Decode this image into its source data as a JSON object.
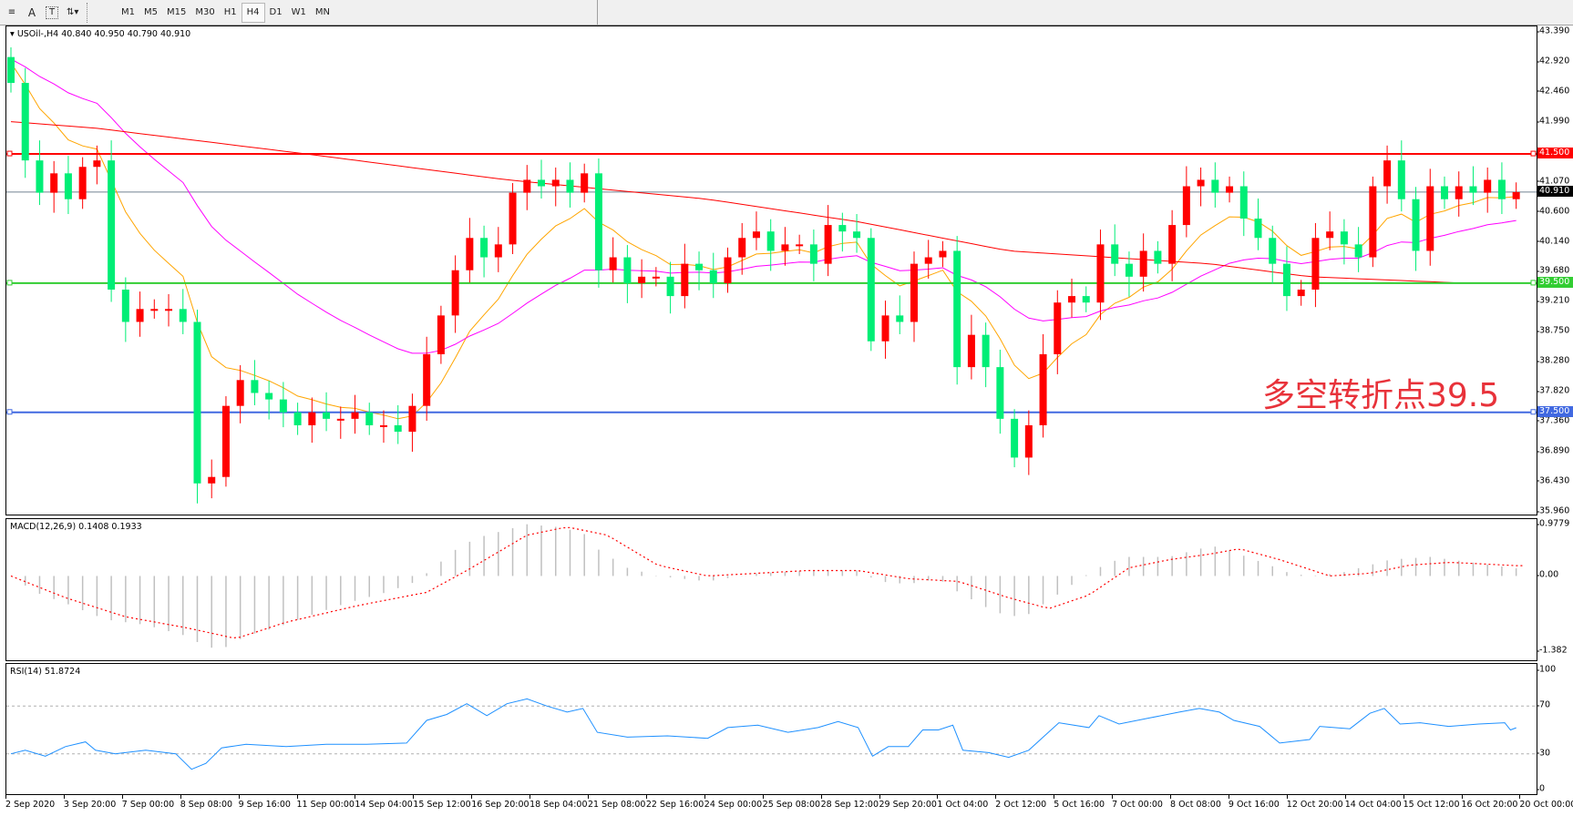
{
  "toolbar": {
    "tools": [
      {
        "name": "fibonacci-icon",
        "label": "≡"
      },
      {
        "name": "text-icon",
        "label": "A"
      },
      {
        "name": "text-label-icon",
        "label": "T"
      },
      {
        "name": "arrows-icon",
        "label": "⇅▾"
      }
    ],
    "timeframes": [
      "M1",
      "M5",
      "M15",
      "M30",
      "H1",
      "H4",
      "D1",
      "W1",
      "MN"
    ],
    "active_timeframe": "H4"
  },
  "main": {
    "title": "USOil-,H4  40.840 40.950 40.790 40.910",
    "annotation": "多空转折点39.5"
  },
  "macd": {
    "title": "MACD(12,26,9) 0.1408 0.1933"
  },
  "rsi": {
    "title": "RSI(14) 51.8724"
  },
  "colors": {
    "bull": "#ff0000",
    "bear": "#00ee76",
    "ma_fast": "#ffa500",
    "ma_mid": "#ff00ff",
    "ma_long": "#ff0000",
    "macd_hist": "#c0c0c0",
    "macd_signal": "#ff0000",
    "rsi": "#1e90ff",
    "current_price": "#708090"
  },
  "chart_data": [
    {
      "type": "candlestick",
      "symbol": "USOil-",
      "timeframe": "H4",
      "ylim": [
        35.96,
        43.39
      ],
      "y_ticks": [
        "43.390",
        "42.920",
        "42.460",
        "41.990",
        "41.070",
        "40.600",
        "40.140",
        "39.680",
        "39.210",
        "38.750",
        "38.280",
        "37.820",
        "37.360",
        "36.890",
        "36.430",
        "35.960"
      ],
      "x_ticks": [
        "2 Sep 2020",
        "3 Sep 20:00",
        "7 Sep 00:00",
        "8 Sep 08:00",
        "9 Sep 16:00",
        "11 Sep 00:00",
        "14 Sep 04:00",
        "15 Sep 12:00",
        "16 Sep 20:00",
        "18 Sep 04:00",
        "21 Sep 08:00",
        "22 Sep 16:00",
        "24 Sep 00:00",
        "25 Sep 08:00",
        "28 Sep 12:00",
        "29 Sep 20:00",
        "1 Oct 04:00",
        "2 Oct 12:00",
        "5 Oct 16:00",
        "7 Oct 00:00",
        "8 Oct 08:00",
        "9 Oct 16:00",
        "12 Oct 20:00",
        "14 Oct 04:00",
        "15 Oct 12:00",
        "16 Oct 20:00",
        "20 Oct 00:00"
      ],
      "first_open": 43.0,
      "closes": [
        42.6,
        41.4,
        40.9,
        41.2,
        40.8,
        41.3,
        41.4,
        39.4,
        38.9,
        39.1,
        39.1,
        39.1,
        38.9,
        36.4,
        36.5,
        37.6,
        38.0,
        37.8,
        37.7,
        37.5,
        37.3,
        37.5,
        37.4,
        37.4,
        37.5,
        37.3,
        37.3,
        37.2,
        37.6,
        38.4,
        39.0,
        39.7,
        40.2,
        39.9,
        40.1,
        40.9,
        41.1,
        41.0,
        41.1,
        40.9,
        41.2,
        39.7,
        39.9,
        39.5,
        39.6,
        39.6,
        39.3,
        39.8,
        39.7,
        39.5,
        39.9,
        40.2,
        40.3,
        40.0,
        40.1,
        40.1,
        39.8,
        40.4,
        40.3,
        40.2,
        38.6,
        39.0,
        38.9,
        39.8,
        39.9,
        40.0,
        38.2,
        38.7,
        38.2,
        37.4,
        36.8,
        37.3,
        38.4,
        39.2,
        39.3,
        39.2,
        40.1,
        39.8,
        39.6,
        40.0,
        39.8,
        40.4,
        41.0,
        41.1,
        40.9,
        41.0,
        40.5,
        40.2,
        39.8,
        39.3,
        39.4,
        40.2,
        40.3,
        40.1,
        39.9,
        41.0,
        41.4,
        40.8,
        40.0,
        41.0,
        40.8,
        41.0,
        40.9,
        41.1,
        40.8,
        40.91
      ],
      "ma_long": [
        [
          0,
          42.0
        ],
        [
          5.9,
          41.9
        ],
        [
          20.6,
          41.5
        ],
        [
          34.6,
          41.1
        ],
        [
          48.6,
          40.8
        ],
        [
          59.1,
          40.45
        ],
        [
          69.6,
          40.0
        ],
        [
          76.6,
          39.9
        ],
        [
          83.6,
          39.8
        ],
        [
          90.6,
          39.6
        ],
        [
          101.4,
          39.5
        ]
      ],
      "current_price": {
        "value": 40.91,
        "label": "40.910"
      },
      "horizontal_lines": [
        {
          "value": 41.5,
          "label": "41.500",
          "color": "#ff0000"
        },
        {
          "value": 39.5,
          "label": "39.500",
          "color": "#32cd32"
        },
        {
          "value": 37.5,
          "label": "37.500",
          "color": "#4169e1"
        }
      ]
    },
    {
      "type": "bar",
      "indicator": "MACD(12,26,9)",
      "ylim": [
        -1.382,
        0.9779
      ],
      "y_ticks": [
        "0.9779",
        "0.00",
        "-1.382"
      ],
      "histogram": [
        [
          0,
          0
        ],
        [
          1.7,
          -0.3
        ],
        [
          3.8,
          -0.5
        ],
        [
          6.6,
          -0.8
        ],
        [
          9.4,
          -0.9
        ],
        [
          12.2,
          -1.1
        ],
        [
          13.6,
          -1.3
        ],
        [
          14.7,
          -1.35
        ],
        [
          16.4,
          -1.1
        ],
        [
          18.5,
          -0.95
        ],
        [
          20.6,
          -0.75
        ],
        [
          23.4,
          -0.5
        ],
        [
          26.2,
          -0.3
        ],
        [
          28.3,
          -0.1
        ],
        [
          29.7,
          0.2
        ],
        [
          31.1,
          0.5
        ],
        [
          32.5,
          0.7
        ],
        [
          34.6,
          0.85
        ],
        [
          36,
          0.95
        ],
        [
          38.1,
          0.9
        ],
        [
          39.9,
          0.8
        ],
        [
          40.9,
          0.5
        ],
        [
          43,
          0.15
        ],
        [
          45.1,
          0
        ],
        [
          48.6,
          -0.1
        ],
        [
          52.1,
          0.05
        ],
        [
          55.6,
          0.1
        ],
        [
          59.1,
          0.1
        ],
        [
          60.5,
          -0.1
        ],
        [
          62.6,
          -0.15
        ],
        [
          64.7,
          -0.05
        ],
        [
          66.1,
          -0.3
        ],
        [
          68.2,
          -0.6
        ],
        [
          69.6,
          -0.75
        ],
        [
          71,
          -0.7
        ],
        [
          72.4,
          -0.45
        ],
        [
          73.8,
          -0.2
        ],
        [
          75.2,
          0.05
        ],
        [
          76.6,
          0.25
        ],
        [
          78,
          0.35
        ],
        [
          80.8,
          0.35
        ],
        [
          82.9,
          0.5
        ],
        [
          84.3,
          0.55
        ],
        [
          85.7,
          0.4
        ],
        [
          87.8,
          0.2
        ],
        [
          89.2,
          0.05
        ],
        [
          90.6,
          0
        ],
        [
          92.7,
          0.05
        ],
        [
          94.8,
          0.2
        ],
        [
          96.2,
          0.3
        ],
        [
          99,
          0.35
        ],
        [
          105,
          0.14
        ]
      ],
      "signal": [
        [
          0,
          0
        ],
        [
          3.8,
          -0.4
        ],
        [
          8,
          -0.75
        ],
        [
          12.2,
          -0.95
        ],
        [
          15.7,
          -1.15
        ],
        [
          19.2,
          -0.85
        ],
        [
          24.1,
          -0.55
        ],
        [
          29,
          -0.3
        ],
        [
          31.8,
          0.1
        ],
        [
          36,
          0.75
        ],
        [
          38.8,
          0.9
        ],
        [
          41.6,
          0.75
        ],
        [
          45.1,
          0.2
        ],
        [
          48.6,
          0
        ],
        [
          52.1,
          0.05
        ],
        [
          55.6,
          0.1
        ],
        [
          59.1,
          0.1
        ],
        [
          62.6,
          -0.05
        ],
        [
          66.1,
          -0.1
        ],
        [
          69.6,
          -0.4
        ],
        [
          72.4,
          -0.6
        ],
        [
          75.2,
          -0.35
        ],
        [
          78,
          0.15
        ],
        [
          80.8,
          0.3
        ],
        [
          83.6,
          0.4
        ],
        [
          85.7,
          0.5
        ],
        [
          88.5,
          0.3
        ],
        [
          92,
          0
        ],
        [
          94.8,
          0.05
        ],
        [
          97.6,
          0.2
        ],
        [
          100.4,
          0.25
        ],
        [
          105,
          0.19
        ]
      ]
    },
    {
      "type": "line",
      "indicator": "RSI(14)",
      "ylim": [
        0,
        100
      ],
      "y_ticks": [
        "100",
        "70",
        "30",
        "0"
      ],
      "levels": [
        70,
        30
      ],
      "values": [
        [
          0,
          30
        ],
        [
          1,
          33
        ],
        [
          2.4,
          28
        ],
        [
          3.8,
          36
        ],
        [
          5.2,
          40
        ],
        [
          5.9,
          33
        ],
        [
          7.3,
          30
        ],
        [
          9.4,
          33
        ],
        [
          11.5,
          30
        ],
        [
          12.6,
          17
        ],
        [
          13.6,
          22
        ],
        [
          14.7,
          35
        ],
        [
          16.4,
          38
        ],
        [
          19.2,
          36
        ],
        [
          22,
          38
        ],
        [
          24.8,
          38
        ],
        [
          27.6,
          39
        ],
        [
          29,
          58
        ],
        [
          30.4,
          63
        ],
        [
          31.8,
          72
        ],
        [
          33.2,
          62
        ],
        [
          34.6,
          72
        ],
        [
          36,
          76
        ],
        [
          37.4,
          70
        ],
        [
          38.8,
          65
        ],
        [
          39.9,
          68
        ],
        [
          40.9,
          48
        ],
        [
          43,
          44
        ],
        [
          45.8,
          45
        ],
        [
          48.6,
          43
        ],
        [
          50,
          52
        ],
        [
          52.1,
          54
        ],
        [
          54.2,
          48
        ],
        [
          56.3,
          52
        ],
        [
          57.7,
          57
        ],
        [
          59.1,
          52
        ],
        [
          60.1,
          28
        ],
        [
          61.2,
          36
        ],
        [
          62.6,
          36
        ],
        [
          63.6,
          50
        ],
        [
          64.7,
          50
        ],
        [
          65.7,
          54
        ],
        [
          66.4,
          33
        ],
        [
          68.2,
          31
        ],
        [
          69.6,
          27
        ],
        [
          71,
          33
        ],
        [
          72,
          44
        ],
        [
          73.1,
          56
        ],
        [
          75.2,
          52
        ],
        [
          75.9,
          62
        ],
        [
          77.3,
          55
        ],
        [
          79.4,
          60
        ],
        [
          81.5,
          65
        ],
        [
          82.9,
          68
        ],
        [
          84.3,
          65
        ],
        [
          85.3,
          58
        ],
        [
          87.1,
          53
        ],
        [
          88.5,
          39
        ],
        [
          90.6,
          42
        ],
        [
          91.3,
          53
        ],
        [
          93.4,
          51
        ],
        [
          94.8,
          64
        ],
        [
          95.8,
          68
        ],
        [
          96.9,
          55
        ],
        [
          98.3,
          56
        ],
        [
          100.3,
          53
        ],
        [
          102.4,
          55
        ],
        [
          104.2,
          56
        ],
        [
          104.6,
          50
        ],
        [
          105,
          51.87
        ]
      ]
    }
  ]
}
